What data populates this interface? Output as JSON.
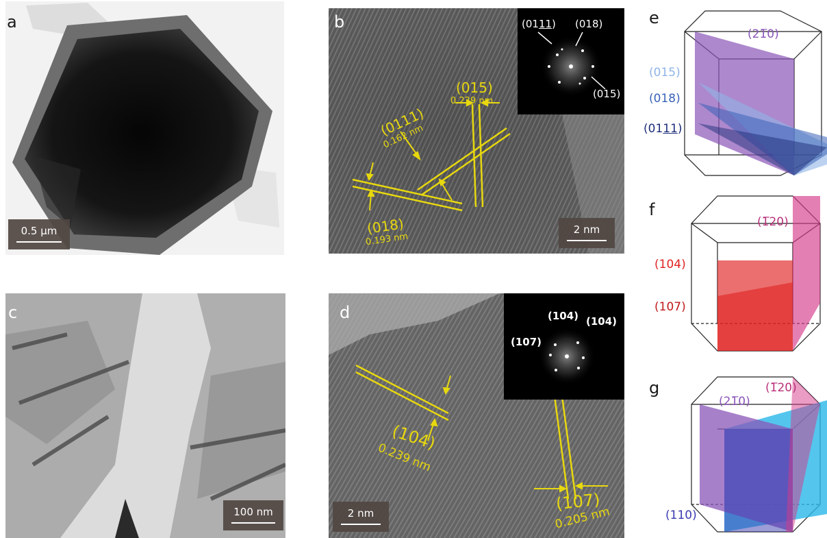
{
  "panels": {
    "a": {
      "label": "a",
      "scale": "0.5 µm"
    },
    "b": {
      "label": "b",
      "scale": "2 nm",
      "planes": [
        {
          "hkl": "(015)",
          "d": "0.229 nm"
        },
        {
          "hkl": "(0111)",
          "d": "0.162 nm"
        },
        {
          "hkl": "(018)",
          "d": "0.193 nm"
        }
      ],
      "fft": {
        "l1": "(01",
        "l1u": "11",
        "l1c": ")",
        "l2": "(018)",
        "l3": "(015)"
      }
    },
    "c": {
      "label": "c",
      "scale": "100 nm"
    },
    "d": {
      "label": "d",
      "scale": "2 nm",
      "planes": [
        {
          "hkl": "(104)",
          "d": "0.239 nm"
        },
        {
          "hkl": "(107)",
          "d": "0.205 nm"
        }
      ],
      "fft": {
        "l1": "(104)",
        "l2": "(104)",
        "l3": "(107)"
      }
    },
    "e": {
      "label": "e",
      "top": "(2̅0)",
      "top_a": "(2",
      "top_b": "1̅",
      "top_c": "0)",
      "l1": "(015)",
      "l2": "(018)",
      "l3a": "(01",
      "l3b": "11",
      "l3c": ")"
    },
    "f": {
      "label": "f",
      "top": "(̅2̅0)",
      "top_a": "(",
      "top_b": "1̅",
      "top_c": "20)",
      "l1": "(104)",
      "l2": "(107)"
    },
    "g": {
      "label": "g",
      "t1a": "(2",
      "t1b": "1̅",
      "t1c": "0)",
      "t2a": "(",
      "t2b": "1̅",
      "t2c": "20)",
      "l1": "(110)"
    }
  },
  "colors": {
    "yellow": "#e8d80e",
    "purple": "#8a55b8",
    "blue_light": "#8fb4e6",
    "blue": "#3a62b8",
    "navy": "#1f2f7a",
    "red": "#e02222",
    "pink": "#d63a8a",
    "cyan": "#29b6e8"
  }
}
